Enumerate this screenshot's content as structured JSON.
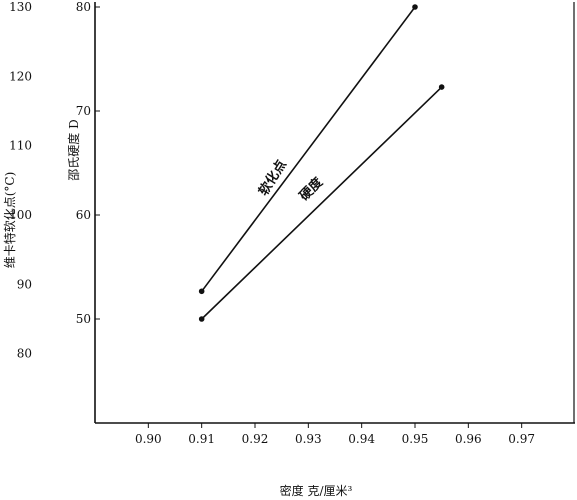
{
  "chart_data": {
    "type": "line",
    "title": "",
    "xlabel": "密度  克/厘米³",
    "ylabel_left": "维卡特软化点(°C)",
    "ylabel_right": "邵氏硬度 D",
    "xlim": [
      0.89,
      0.98
    ],
    "ylim_left": [
      70,
      130
    ],
    "ylim_right": [
      40,
      80
    ],
    "x_ticks": [
      "0.90",
      "0.91",
      "0.92",
      "0.93",
      "0.94",
      "0.95",
      "0.96",
      "0.97"
    ],
    "y_left_ticks": [
      "80",
      "90",
      "100",
      "110",
      "120",
      "130"
    ],
    "y_right_ticks": [
      "50",
      "60",
      "70",
      "80"
    ],
    "grid": false,
    "series": [
      {
        "name": "软化点",
        "axis": "left",
        "color": "#111111",
        "x": [
          0.91,
          0.95
        ],
        "y": [
          89,
          130
        ]
      },
      {
        "name": "硬度",
        "axis": "right",
        "color": "#111111",
        "x": [
          0.91,
          0.955
        ],
        "y": [
          50,
          72.3
        ]
      }
    ]
  }
}
